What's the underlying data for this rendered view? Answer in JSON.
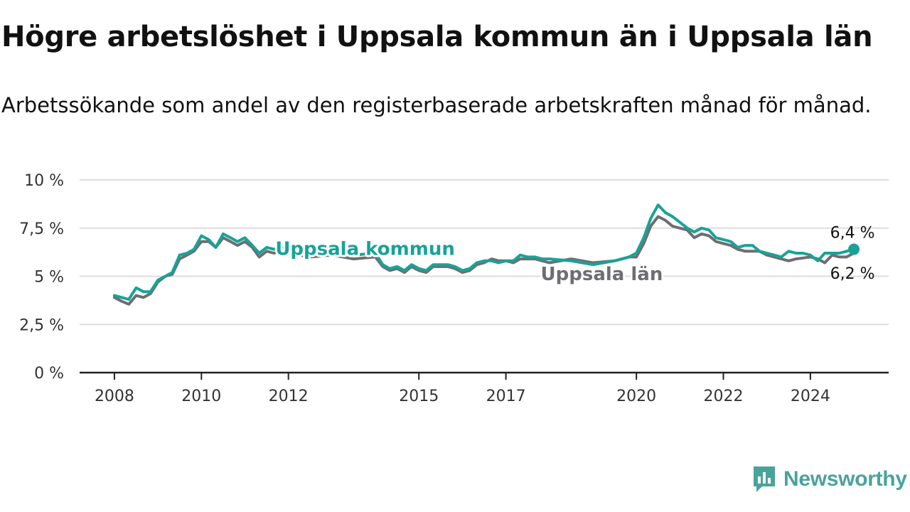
{
  "title": "Högre arbetslöshet i Uppsala kommun än i Uppsala län",
  "subtitle": "Arbetssökande som andel av den registerbaserade arbetskraften månad för månad.",
  "brand": {
    "name": "Newsworthy"
  },
  "colors": {
    "kommun": "#17a398",
    "lan": "#6e6e72",
    "grid": "#dddddd",
    "axis": "#222222",
    "brand": "#4aa39b"
  },
  "chart_data": {
    "type": "line",
    "title": "Högre arbetslöshet i Uppsala kommun än i Uppsala län",
    "subtitle": "Arbetssökande som andel av den registerbaserade arbetskraften månad för månad.",
    "xlabel": "",
    "ylabel": "",
    "xlim": [
      2007.2,
      2025.8
    ],
    "ylim": [
      0,
      10
    ],
    "yticks": [
      0,
      2.5,
      5,
      7.5,
      10
    ],
    "ytick_labels": [
      "0 %",
      "2,5 %",
      "5 %",
      "7,5 %",
      "10 %"
    ],
    "xticks": [
      2008,
      2010,
      2012,
      2015,
      2017,
      2020,
      2022,
      2024
    ],
    "xtick_labels": [
      "2008",
      "2010",
      "2012",
      "2015",
      "2017",
      "2020",
      "2022",
      "2024"
    ],
    "grid": true,
    "legend": "direct labels on lines",
    "series": [
      {
        "name": "Uppsala län",
        "color": "#6e6e72",
        "end_label": "6,2 %",
        "x": [
          2008.0,
          2008.17,
          2008.33,
          2008.5,
          2008.67,
          2008.83,
          2009.0,
          2009.17,
          2009.33,
          2009.5,
          2009.67,
          2009.83,
          2010.0,
          2010.17,
          2010.33,
          2010.5,
          2010.67,
          2010.83,
          2011.0,
          2011.17,
          2011.33,
          2011.5,
          2011.67,
          2011.83,
          2012.0,
          2012.5,
          2013.0,
          2013.5,
          2014.0,
          2014.17,
          2014.33,
          2014.5,
          2014.67,
          2014.83,
          2015.0,
          2015.17,
          2015.33,
          2015.5,
          2015.67,
          2015.83,
          2016.0,
          2016.17,
          2016.33,
          2016.5,
          2016.67,
          2016.83,
          2017.0,
          2017.17,
          2017.33,
          2017.5,
          2017.67,
          2017.83,
          2018.0,
          2018.5,
          2019.0,
          2019.5,
          2019.67,
          2019.83,
          2020.0,
          2020.17,
          2020.33,
          2020.5,
          2020.67,
          2020.83,
          2021.0,
          2021.17,
          2021.33,
          2021.5,
          2021.67,
          2021.83,
          2022.0,
          2022.17,
          2022.33,
          2022.5,
          2022.67,
          2022.83,
          2023.0,
          2023.17,
          2023.33,
          2023.5,
          2023.67,
          2023.83,
          2024.0,
          2024.17,
          2024.33,
          2024.5,
          2024.67,
          2024.83,
          2025.0
        ],
        "values": [
          3.9,
          3.7,
          3.55,
          4.0,
          3.9,
          4.1,
          4.7,
          5.0,
          5.1,
          5.9,
          6.1,
          6.3,
          6.8,
          6.8,
          6.5,
          7.0,
          6.8,
          6.6,
          6.8,
          6.5,
          6.0,
          6.3,
          6.2,
          6.3,
          6.2,
          6.0,
          6.1,
          5.9,
          6.0,
          5.5,
          5.3,
          5.4,
          5.2,
          5.5,
          5.3,
          5.2,
          5.5,
          5.5,
          5.5,
          5.4,
          5.2,
          5.3,
          5.6,
          5.7,
          5.9,
          5.8,
          5.8,
          5.7,
          5.9,
          5.9,
          5.9,
          5.8,
          5.7,
          5.9,
          5.7,
          5.8,
          5.9,
          6.0,
          6.0,
          6.7,
          7.6,
          8.1,
          7.9,
          7.6,
          7.5,
          7.4,
          7.0,
          7.2,
          7.1,
          6.8,
          6.7,
          6.6,
          6.4,
          6.3,
          6.3,
          6.3,
          6.1,
          6.0,
          5.9,
          5.8,
          5.9,
          5.95,
          6.0,
          5.9,
          5.7,
          6.1,
          6.0,
          6.0,
          6.2
        ]
      },
      {
        "name": "Uppsala kommun",
        "color": "#17a398",
        "end_label": "6,4 %",
        "x": [
          2008.0,
          2008.17,
          2008.33,
          2008.5,
          2008.67,
          2008.83,
          2009.0,
          2009.17,
          2009.33,
          2009.5,
          2009.67,
          2009.83,
          2010.0,
          2010.17,
          2010.33,
          2010.5,
          2010.67,
          2010.83,
          2011.0,
          2011.17,
          2011.33,
          2011.5,
          2011.67,
          2011.83,
          2012.0,
          2012.5,
          2013.0,
          2013.5,
          2014.0,
          2014.17,
          2014.33,
          2014.5,
          2014.67,
          2014.83,
          2015.0,
          2015.17,
          2015.33,
          2015.5,
          2015.67,
          2015.83,
          2016.0,
          2016.17,
          2016.33,
          2016.5,
          2016.67,
          2016.83,
          2017.0,
          2017.17,
          2017.33,
          2017.5,
          2017.67,
          2017.83,
          2018.0,
          2018.5,
          2019.0,
          2019.5,
          2019.67,
          2019.83,
          2020.0,
          2020.17,
          2020.33,
          2020.5,
          2020.67,
          2020.83,
          2021.0,
          2021.17,
          2021.33,
          2021.5,
          2021.67,
          2021.83,
          2022.0,
          2022.17,
          2022.33,
          2022.5,
          2022.67,
          2022.83,
          2023.0,
          2023.17,
          2023.33,
          2023.5,
          2023.67,
          2023.83,
          2024.0,
          2024.17,
          2024.33,
          2024.5,
          2024.67,
          2024.83,
          2025.0
        ],
        "values": [
          4.0,
          3.9,
          3.8,
          4.4,
          4.2,
          4.2,
          4.8,
          5.0,
          5.2,
          6.1,
          6.2,
          6.4,
          7.1,
          6.9,
          6.5,
          7.2,
          7.0,
          6.8,
          7.0,
          6.6,
          6.2,
          6.5,
          6.4,
          6.5,
          6.4,
          6.1,
          6.3,
          6.1,
          6.2,
          5.6,
          5.4,
          5.5,
          5.3,
          5.6,
          5.4,
          5.3,
          5.6,
          5.6,
          5.6,
          5.5,
          5.3,
          5.4,
          5.7,
          5.8,
          5.8,
          5.7,
          5.8,
          5.8,
          6.1,
          6.0,
          6.0,
          5.9,
          5.9,
          5.8,
          5.6,
          5.8,
          5.9,
          6.0,
          6.2,
          7.0,
          8.0,
          8.7,
          8.3,
          8.1,
          7.8,
          7.5,
          7.3,
          7.5,
          7.4,
          7.0,
          6.9,
          6.8,
          6.5,
          6.6,
          6.6,
          6.3,
          6.2,
          6.1,
          6.0,
          6.3,
          6.2,
          6.2,
          6.1,
          5.8,
          6.2,
          6.2,
          6.2,
          6.3,
          6.4
        ]
      }
    ]
  }
}
